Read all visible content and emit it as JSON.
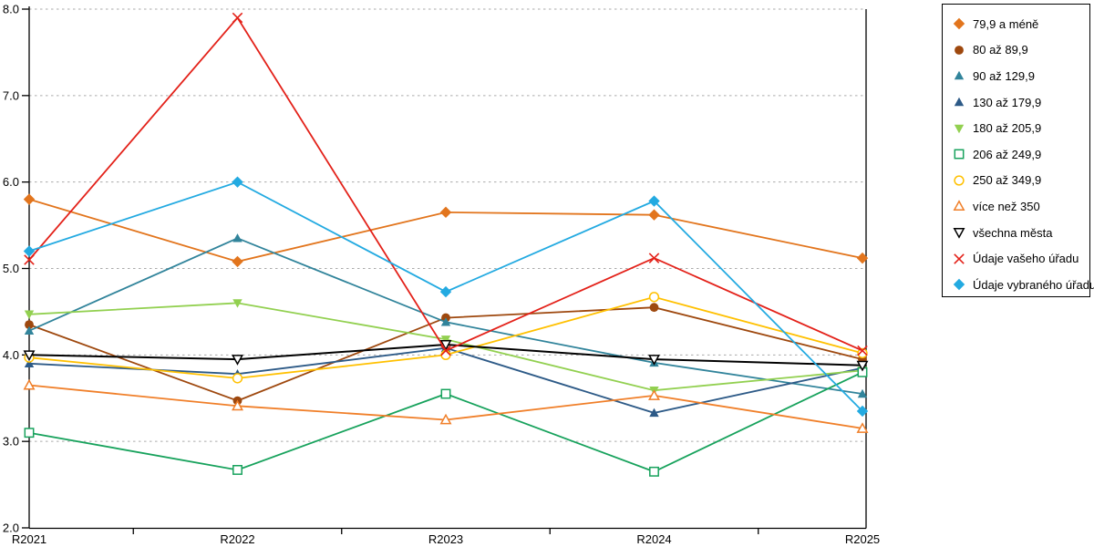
{
  "chart_data": {
    "type": "line",
    "title": "",
    "xlabel": "",
    "ylabel": "",
    "categories": [
      "R2021",
      "R2022",
      "R2023",
      "R2024",
      "R2025"
    ],
    "y_tick_labels": [
      "8.0",
      "7.0",
      "6.0",
      "5.0",
      "4.0",
      "3.0",
      "2.0"
    ],
    "ylim": [
      2.0,
      8.0
    ],
    "grid": "horizontal dashed",
    "legend_position": "right",
    "axis_color": "#000000",
    "grid_color": "#aaaaaa",
    "series": [
      {
        "name": "79,9 a méně",
        "color": "#E2751D",
        "marker": "diamond",
        "filled": true,
        "values": [
          5.8,
          5.08,
          5.65,
          5.62,
          5.12
        ]
      },
      {
        "name": "80 až 89,9",
        "color": "#9E480E",
        "marker": "circle",
        "filled": true,
        "values": [
          4.35,
          3.47,
          4.43,
          4.55,
          3.95
        ]
      },
      {
        "name": "90 až 129,9",
        "color": "#31849B",
        "marker": "triangle-up",
        "filled": true,
        "values": [
          4.28,
          5.35,
          4.38,
          3.91,
          3.55
        ]
      },
      {
        "name": "130 až 179,9",
        "color": "#2D5A87",
        "marker": "triangle-up",
        "filled": true,
        "values": [
          3.9,
          3.78,
          4.08,
          3.33,
          3.85
        ]
      },
      {
        "name": "180 až 205,9",
        "color": "#92D050",
        "marker": "triangle-down",
        "filled": true,
        "values": [
          4.47,
          4.6,
          4.18,
          3.59,
          3.82
        ]
      },
      {
        "name": "206 až 249,9",
        "color": "#17A25C",
        "marker": "square",
        "filled": false,
        "values": [
          3.1,
          2.67,
          3.55,
          2.65,
          3.8
        ]
      },
      {
        "name": "250 až 349,9",
        "color": "#FFC000",
        "marker": "circle",
        "filled": false,
        "values": [
          3.97,
          3.73,
          4.0,
          4.67,
          4.02
        ]
      },
      {
        "name": "více než 350",
        "color": "#F07F29",
        "marker": "triangle-up",
        "filled": false,
        "values": [
          3.65,
          3.41,
          3.25,
          3.53,
          3.15
        ]
      },
      {
        "name": "všechna města",
        "color": "#000000",
        "marker": "triangle-down",
        "filled": false,
        "values": [
          4.0,
          3.95,
          4.12,
          3.95,
          3.88
        ]
      },
      {
        "name": "Údaje vašeho úřadu",
        "color": "#E32119",
        "marker": "x",
        "filled": false,
        "values": [
          5.1,
          7.9,
          4.05,
          5.12,
          4.05
        ]
      },
      {
        "name": "Údaje vybraného úřadu",
        "color": "#23AAE1",
        "marker": "diamond",
        "filled": true,
        "values": [
          5.2,
          6.0,
          4.73,
          5.78,
          3.35
        ]
      }
    ]
  }
}
